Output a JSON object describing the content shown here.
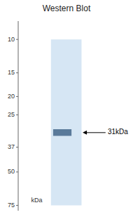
{
  "chart_data": {
    "type": "gel",
    "title": "Western Blot",
    "ylabel": "kDa",
    "log": "y",
    "ylim": [
      80,
      8
    ],
    "yticks": [
      75,
      50,
      37,
      25,
      20,
      15,
      10
    ],
    "gel_range": [
      10,
      75
    ],
    "values": [
      31
    ],
    "value_labels": [
      "31kDa"
    ],
    "data_labels": true,
    "band_height": 2.5,
    "color": "#5a7a9a"
  }
}
